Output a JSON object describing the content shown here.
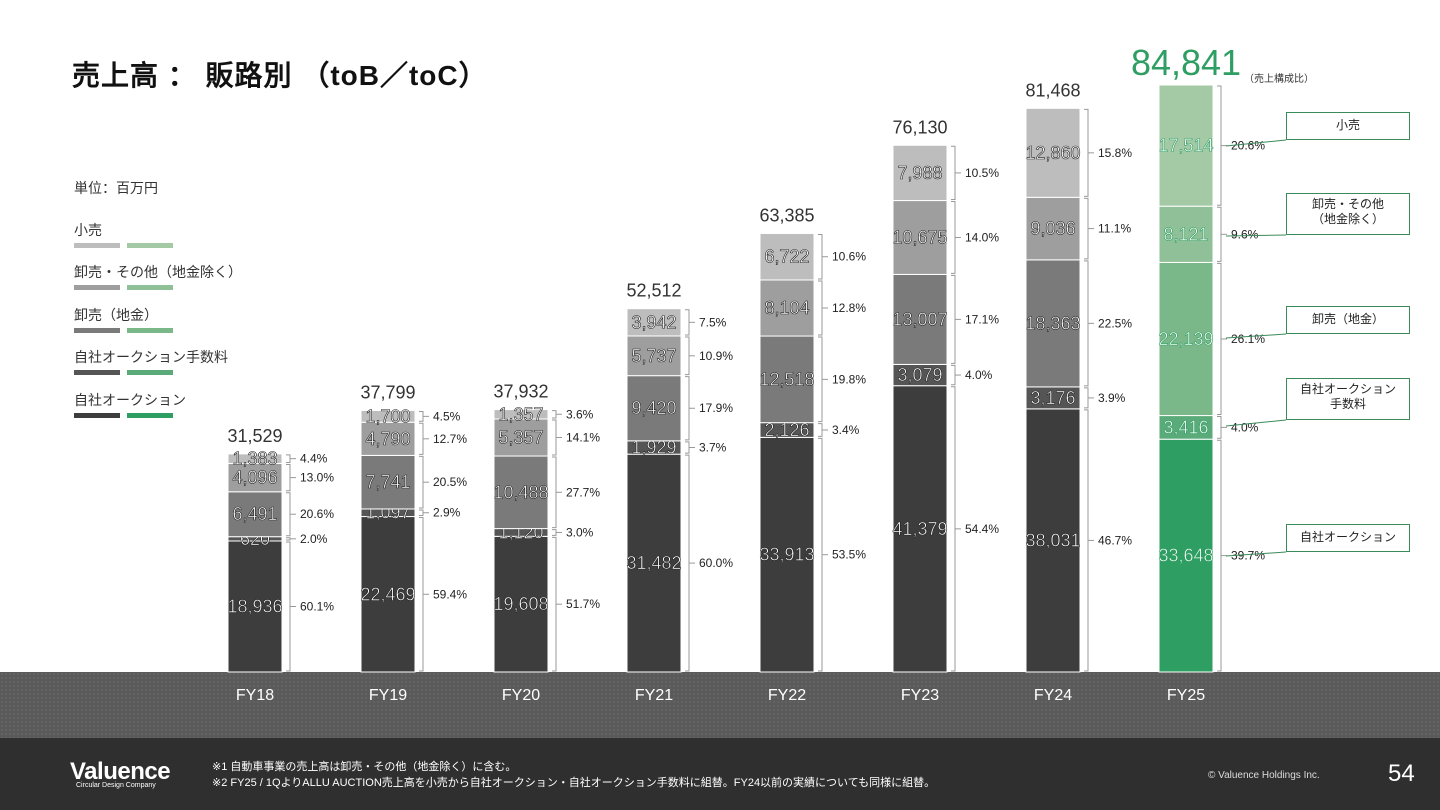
{
  "title": "売上高 ： 販路別 （toB／toC）",
  "unit_label": "単位：百万円",
  "legend": [
    {
      "label": "小売",
      "gray": "#bdbdbd",
      "green": "#a3c9a5"
    },
    {
      "label": "卸売・その他（地金除く）",
      "gray": "#9e9e9e",
      "green": "#8fc097"
    },
    {
      "label": "卸売（地金）",
      "gray": "#7a7a7a",
      "green": "#7ab88a"
    },
    {
      "label": "自社オークション手数料",
      "gray": "#555555",
      "green": "#5aab79"
    },
    {
      "label": "自社オークション",
      "gray": "#3d3d3d",
      "green": "#2e9e62"
    }
  ],
  "composition_note": "（売上構成比）",
  "callouts": [
    "小売",
    "卸売・その他\n（地金除く）",
    "卸売（地金）",
    "自社オークション\n手数料",
    "自社オークション"
  ],
  "chart_data": {
    "type": "bar",
    "stacked": true,
    "categories": [
      "FY18",
      "FY19",
      "FY20",
      "FY21",
      "FY22",
      "FY23",
      "FY24",
      "FY25"
    ],
    "totals": [
      "31,529",
      "37,799",
      "37,932",
      "52,512",
      "63,385",
      "76,130",
      "81,468",
      "84,841"
    ],
    "total_values": [
      31529,
      37799,
      37932,
      52512,
      63385,
      76130,
      81468,
      84841
    ],
    "series": [
      {
        "name": "自社オークション",
        "values": [
          18936,
          22469,
          19608,
          31482,
          33913,
          41379,
          38031,
          33648
        ],
        "labels": [
          "18,936",
          "22,469",
          "19,608",
          "31,482",
          "33,913",
          "41,379",
          "38,031",
          "33,648"
        ],
        "pct": [
          "60.1%",
          "59.4%",
          "51.7%",
          "60.0%",
          "53.5%",
          "54.4%",
          "46.7%",
          "39.7%"
        ]
      },
      {
        "name": "自社オークション手数料",
        "values": [
          620,
          1097,
          1120,
          1929,
          2126,
          3079,
          3176,
          3416
        ],
        "labels": [
          "620",
          "1,097",
          "1,120",
          "1,929",
          "2,126",
          "3,079",
          "3,176",
          "3,416"
        ],
        "pct": [
          "2.0%",
          "2.9%",
          "3.0%",
          "3.7%",
          "3.4%",
          "4.0%",
          "3.9%",
          "4.0%"
        ]
      },
      {
        "name": "卸売（地金）",
        "values": [
          6491,
          7741,
          10488,
          9420,
          12518,
          13007,
          18363,
          22139
        ],
        "labels": [
          "6,491",
          "7,741",
          "10,488",
          "9,420",
          "12,518",
          "13,007",
          "18,363",
          "22,139"
        ],
        "pct": [
          "20.6%",
          "20.5%",
          "27.7%",
          "17.9%",
          "19.8%",
          "17.1%",
          "22.5%",
          "26.1%"
        ]
      },
      {
        "name": "卸売・その他（地金除く）",
        "values": [
          4096,
          4790,
          5357,
          5737,
          8104,
          10675,
          9036,
          8121
        ],
        "labels": [
          "4,096",
          "4,790",
          "5,357",
          "5,737",
          "8,104",
          "10,675",
          "9,036",
          "8,121"
        ],
        "pct": [
          "13.0%",
          "12.7%",
          "14.1%",
          "10.9%",
          "12.8%",
          "14.0%",
          "11.1%",
          "9.6%"
        ]
      },
      {
        "name": "小売",
        "values": [
          1383,
          1700,
          1357,
          3942,
          6722,
          7988,
          12860,
          17514
        ],
        "labels": [
          "1,383",
          "1,700",
          "1,357",
          "3,942",
          "6,722",
          "7,988",
          "12,860",
          "17,514"
        ],
        "pct": [
          "4.4%",
          "4.5%",
          "3.6%",
          "7.5%",
          "10.6%",
          "10.5%",
          "15.8%",
          "20.6%"
        ]
      }
    ],
    "highlight_category": "FY25",
    "colors_gray": [
      "#3d3d3d",
      "#555555",
      "#7a7a7a",
      "#9e9e9e",
      "#bdbdbd"
    ],
    "colors_green": [
      "#2e9e62",
      "#5aab79",
      "#7ab88a",
      "#8fc097",
      "#a3c9a5"
    ],
    "highlight_total_color": "#2e9e62"
  },
  "footer": {
    "logo": "Valuence",
    "logo_sub": "Circular Design Company",
    "note1": "※1 自動車事業の売上高は卸売・その他（地金除く）に含む。",
    "note2": "※2 FY25 / 1QよりALLU AUCTION売上高を小売から自社オークション・自社オークション手数料に組替。FY24以前の実績についても同様に組替。",
    "copyright": "© Valuence Holdings Inc.",
    "page": "54"
  }
}
